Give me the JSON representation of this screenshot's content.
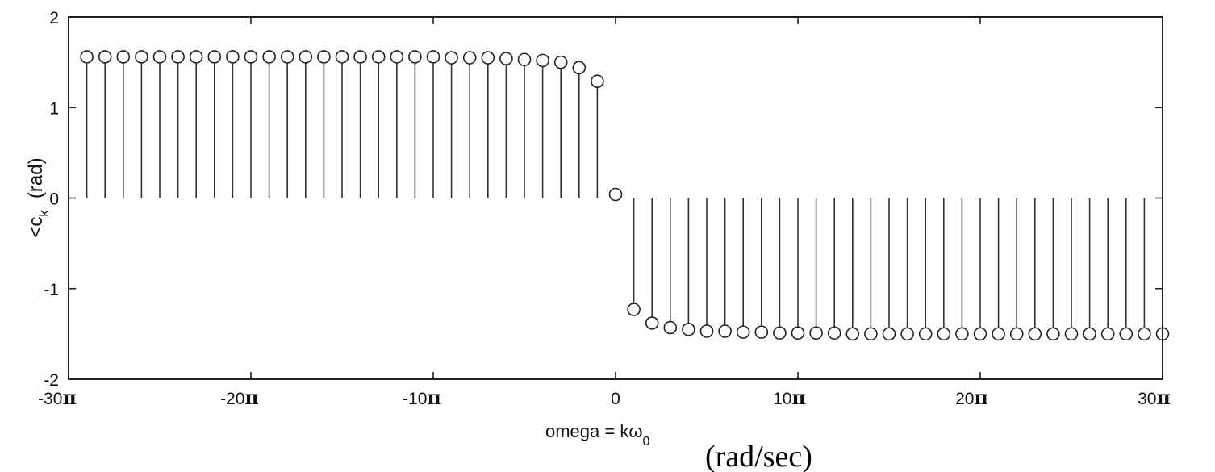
{
  "chart_data": {
    "type": "stem",
    "xlabel": "omega = kω",
    "xlabel_sub": "0",
    "xlabel_units": "(rad/sec)",
    "ylabel": "<c",
    "ylabel_sub": "k",
    "ylabel_units": "(rad)",
    "xlim": [
      -30,
      30
    ],
    "ylim": [
      -2,
      2
    ],
    "x_unit": "π",
    "x_ticks": [
      {
        "value": -30,
        "text": "-30",
        "pi": "π"
      },
      {
        "value": -20,
        "text": "-20",
        "pi": "π"
      },
      {
        "value": -10,
        "text": "-10",
        "pi": "π"
      },
      {
        "value": 0,
        "text": "0",
        "pi": ""
      },
      {
        "value": 10,
        "text": "10",
        "pi": "π"
      },
      {
        "value": 20,
        "text": "20",
        "pi": "π"
      },
      {
        "value": 30,
        "text": "30",
        "pi": "π"
      }
    ],
    "y_ticks": [
      {
        "value": 2,
        "text": "2"
      },
      {
        "value": 1,
        "text": "1"
      },
      {
        "value": 0,
        "text": "0"
      },
      {
        "value": -1,
        "text": "-1"
      },
      {
        "value": -2,
        "text": "-2"
      }
    ],
    "x": [
      -29,
      -28,
      -27,
      -26,
      -25,
      -24,
      -23,
      -22,
      -21,
      -20,
      -19,
      -18,
      -17,
      -16,
      -15,
      -14,
      -13,
      -12,
      -11,
      -10,
      -9,
      -8,
      -7,
      -6,
      -5,
      -4,
      -3,
      -2,
      -1,
      0,
      1,
      2,
      3,
      4,
      5,
      6,
      7,
      8,
      9,
      10,
      11,
      12,
      13,
      14,
      15,
      16,
      17,
      18,
      19,
      20,
      21,
      22,
      23,
      24,
      25,
      26,
      27,
      28,
      29,
      30
    ],
    "y": [
      1.56,
      1.56,
      1.56,
      1.56,
      1.56,
      1.56,
      1.56,
      1.56,
      1.56,
      1.56,
      1.56,
      1.56,
      1.56,
      1.56,
      1.56,
      1.56,
      1.56,
      1.56,
      1.56,
      1.56,
      1.55,
      1.55,
      1.55,
      1.54,
      1.53,
      1.52,
      1.5,
      1.44,
      1.29,
      0.04,
      -1.23,
      -1.38,
      -1.43,
      -1.45,
      -1.47,
      -1.47,
      -1.48,
      -1.48,
      -1.49,
      -1.49,
      -1.49,
      -1.49,
      -1.5,
      -1.5,
      -1.5,
      -1.5,
      -1.5,
      -1.5,
      -1.5,
      -1.5,
      -1.5,
      -1.5,
      -1.5,
      -1.5,
      -1.5,
      -1.5,
      -1.5,
      -1.5,
      -1.5,
      -1.5
    ],
    "grid": false
  }
}
